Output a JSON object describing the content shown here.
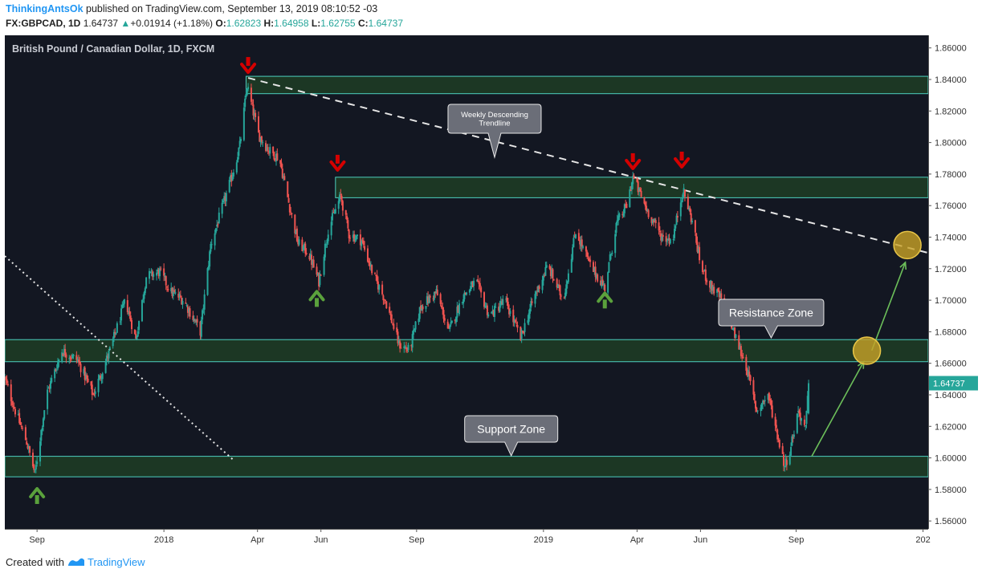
{
  "header": {
    "author": "ThinkingAntsOk",
    "published": "published on TradingView.com, September 13, 2019 08:10:52 -03",
    "symbol": "FX:GBPCAD, 1D",
    "last": "1.64737",
    "change_arrow": "▲",
    "change": "+0.01914 (+1.18%)",
    "o_label": "O:",
    "o_value": "1.62823",
    "h_label": "H:",
    "h_value": "1.64958",
    "l_label": "L:",
    "l_value": "1.62755",
    "c_label": "C:",
    "c_value": "1.64737"
  },
  "footer": {
    "created": "Created with",
    "brand": "TradingView"
  },
  "colors": {
    "background": "#131722",
    "up": "#26a69a",
    "down": "#ef5350",
    "zone_fill": "#1e3b25",
    "zone_border": "#4dd0c0",
    "red_arrow": "#d50000",
    "green_arrow": "#5aa13c",
    "target_circle": "#c9a227",
    "projection": "#6cbf5a",
    "price_tag": "#26a69a",
    "callout_bg": "#6b6e78"
  },
  "chart_data": {
    "type": "candlestick",
    "title": "British Pound / Canadian Dollar, 1D, FXCM",
    "ylim": [
      1.555,
      1.868
    ],
    "y_ticks": [
      "1.86000",
      "1.84000",
      "1.82000",
      "1.80000",
      "1.78000",
      "1.76000",
      "1.74000",
      "1.72000",
      "1.70000",
      "1.68000",
      "1.66000",
      "1.64000",
      "1.62000",
      "1.60000",
      "1.58000",
      "1.56000"
    ],
    "x_ticks": [
      {
        "label": "Sep",
        "date": "2017-09-01"
      },
      {
        "label": "2018",
        "date": "2018-01-01"
      },
      {
        "label": "Apr",
        "date": "2018-04-01"
      },
      {
        "label": "Jun",
        "date": "2018-06-01"
      },
      {
        "label": "Sep",
        "date": "2018-09-01"
      },
      {
        "label": "2019",
        "date": "2019-01-01"
      },
      {
        "label": "Apr",
        "date": "2019-04-01"
      },
      {
        "label": "Jun",
        "date": "2019-06-01"
      },
      {
        "label": "Sep",
        "date": "2019-09-01"
      },
      {
        "label": "202",
        "date": "2020-01-01"
      }
    ],
    "x_range": [
      "2017-08-01",
      "2020-01-06"
    ],
    "last_price_label": "1.64737",
    "price_path": [
      [
        "2017-08-01",
        1.65
      ],
      [
        "2017-08-12",
        1.628
      ],
      [
        "2017-08-22",
        1.61
      ],
      [
        "2017-08-30",
        1.59
      ],
      [
        "2017-09-10",
        1.64
      ],
      [
        "2017-09-25",
        1.668
      ],
      [
        "2017-10-10",
        1.662
      ],
      [
        "2017-10-25",
        1.64
      ],
      [
        "2017-11-10",
        1.668
      ],
      [
        "2017-11-25",
        1.7
      ],
      [
        "2017-12-05",
        1.675
      ],
      [
        "2017-12-15",
        1.715
      ],
      [
        "2017-12-28",
        1.718
      ],
      [
        "2018-01-08",
        1.705
      ],
      [
        "2018-01-20",
        1.7
      ],
      [
        "2018-02-05",
        1.68
      ],
      [
        "2018-02-15",
        1.735
      ],
      [
        "2018-03-01",
        1.765
      ],
      [
        "2018-03-08",
        1.78
      ],
      [
        "2018-03-15",
        1.798
      ],
      [
        "2018-03-22",
        1.836
      ],
      [
        "2018-04-02",
        1.805
      ],
      [
        "2018-04-12",
        1.795
      ],
      [
        "2018-04-22",
        1.79
      ],
      [
        "2018-05-01",
        1.762
      ],
      [
        "2018-05-10",
        1.736
      ],
      [
        "2018-05-20",
        1.73
      ],
      [
        "2018-05-30",
        1.712
      ],
      [
        "2018-06-08",
        1.745
      ],
      [
        "2018-06-20",
        1.766
      ],
      [
        "2018-06-28",
        1.742
      ],
      [
        "2018-07-10",
        1.738
      ],
      [
        "2018-07-22",
        1.715
      ],
      [
        "2018-08-02",
        1.7
      ],
      [
        "2018-08-15",
        1.672
      ],
      [
        "2018-08-25",
        1.668
      ],
      [
        "2018-09-05",
        1.696
      ],
      [
        "2018-09-20",
        1.705
      ],
      [
        "2018-10-02",
        1.68
      ],
      [
        "2018-10-15",
        1.702
      ],
      [
        "2018-10-28",
        1.712
      ],
      [
        "2018-11-10",
        1.69
      ],
      [
        "2018-11-25",
        1.7
      ],
      [
        "2018-12-10",
        1.676
      ],
      [
        "2018-12-22",
        1.7
      ],
      [
        "2019-01-05",
        1.722
      ],
      [
        "2019-01-20",
        1.7
      ],
      [
        "2019-02-01",
        1.744
      ],
      [
        "2019-02-15",
        1.722
      ],
      [
        "2019-03-01",
        1.708
      ],
      [
        "2019-03-12",
        1.748
      ],
      [
        "2019-03-22",
        1.76
      ],
      [
        "2019-03-28",
        1.778
      ],
      [
        "2019-04-10",
        1.758
      ],
      [
        "2019-04-25",
        1.74
      ],
      [
        "2019-05-05",
        1.738
      ],
      [
        "2019-05-15",
        1.77
      ],
      [
        "2019-05-25",
        1.748
      ],
      [
        "2019-06-01",
        1.722
      ],
      [
        "2019-06-10",
        1.71
      ],
      [
        "2019-06-22",
        1.7
      ],
      [
        "2019-07-05",
        1.676
      ],
      [
        "2019-07-15",
        1.658
      ],
      [
        "2019-07-25",
        1.63
      ],
      [
        "2019-08-05",
        1.64
      ],
      [
        "2019-08-15",
        1.612
      ],
      [
        "2019-08-21",
        1.595
      ],
      [
        "2019-08-26",
        1.605
      ],
      [
        "2019-09-03",
        1.63
      ],
      [
        "2019-09-10",
        1.618
      ],
      [
        "2019-09-13",
        1.64737
      ]
    ],
    "zones": [
      {
        "from": 1.831,
        "to": 1.842,
        "start": "2018-03-21"
      },
      {
        "from": 1.765,
        "to": 1.778,
        "start": "2018-06-15"
      },
      {
        "label": "Resistance Zone",
        "from": 1.661,
        "to": 1.675,
        "start": "2017-08-01"
      },
      {
        "label": "Support Zone",
        "from": 1.588,
        "to": 1.601,
        "start": "2017-08-01"
      }
    ],
    "trendline_label": "Weekly Descending Trendline",
    "trendline": [
      [
        "2018-03-23",
        1.841
      ],
      [
        "2020-01-06",
        1.73
      ]
    ],
    "dotted_line": [
      [
        "2017-08-01",
        1.728
      ],
      [
        "2018-03-10",
        1.598
      ]
    ],
    "red_arrows": [
      [
        "2018-03-23",
        1.842
      ],
      [
        "2018-06-17",
        1.78
      ],
      [
        "2019-03-28",
        1.781
      ],
      [
        "2019-05-14",
        1.782
      ]
    ],
    "green_arrows": [
      [
        "2017-09-01",
        1.583
      ],
      [
        "2018-05-28",
        1.708
      ],
      [
        "2019-03-01",
        1.707
      ]
    ],
    "projection": [
      [
        "2019-09-16",
        1.601
      ],
      [
        "2019-11-05",
        1.661
      ],
      [
        "2019-12-15",
        1.724
      ]
    ],
    "target_circles": [
      [
        "2019-11-08",
        1.668
      ],
      [
        "2019-12-17",
        1.735
      ]
    ]
  }
}
